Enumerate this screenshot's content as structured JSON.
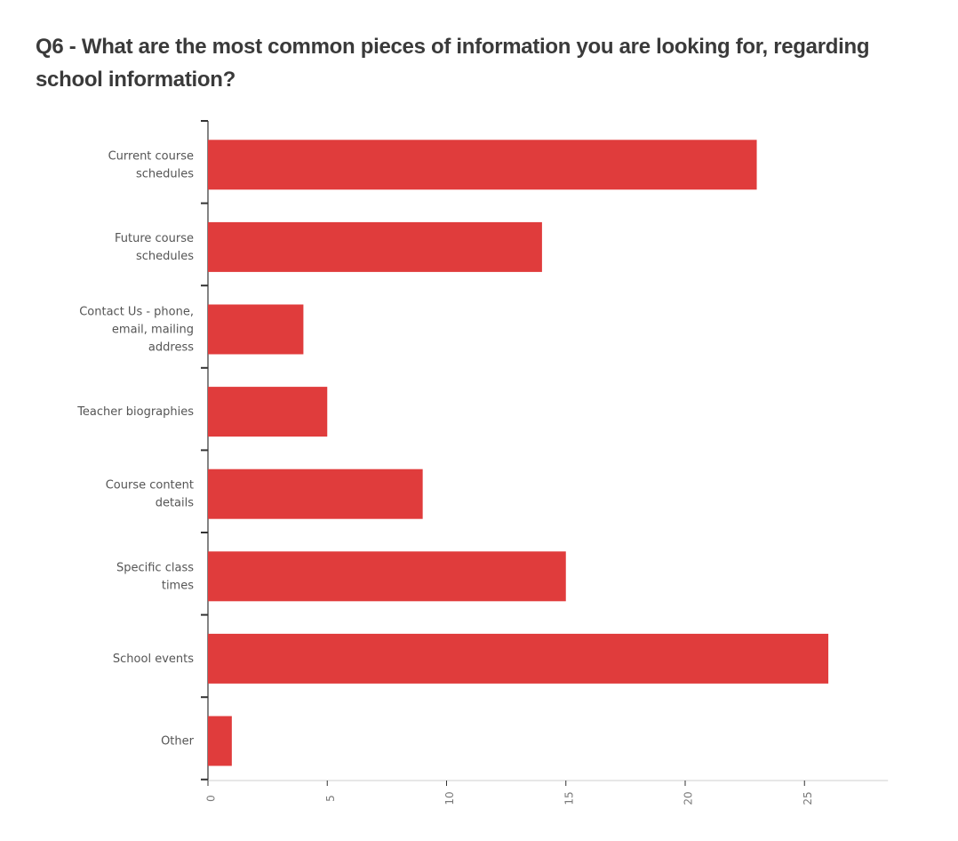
{
  "title": "Q6 - What are the most common pieces of information you are looking for, regarding school information?",
  "colors": {
    "bar": "#e03c3c",
    "axis": "#333333",
    "baseline": "#cfcfcf"
  },
  "chart_data": {
    "type": "bar",
    "orientation": "horizontal",
    "title": "Q6 - What are the most common pieces of information you are looking for, regarding school information?",
    "categories": [
      [
        "Current course",
        "schedules"
      ],
      [
        "Future course",
        "schedules"
      ],
      [
        "Contact Us - phone,",
        "email, mailing",
        "address"
      ],
      [
        "Teacher biographies"
      ],
      [
        "Course content",
        "details"
      ],
      [
        "Specific class",
        "times"
      ],
      [
        "School events"
      ],
      [
        "Other"
      ]
    ],
    "values": [
      23,
      14,
      4,
      5,
      9,
      15,
      26,
      1
    ],
    "xticks": [
      "0",
      "5",
      "10",
      "15",
      "20",
      "25"
    ],
    "xlim": [
      0,
      28.5
    ],
    "xlabel": "",
    "ylabel": "",
    "grid": false,
    "legend": "none"
  }
}
